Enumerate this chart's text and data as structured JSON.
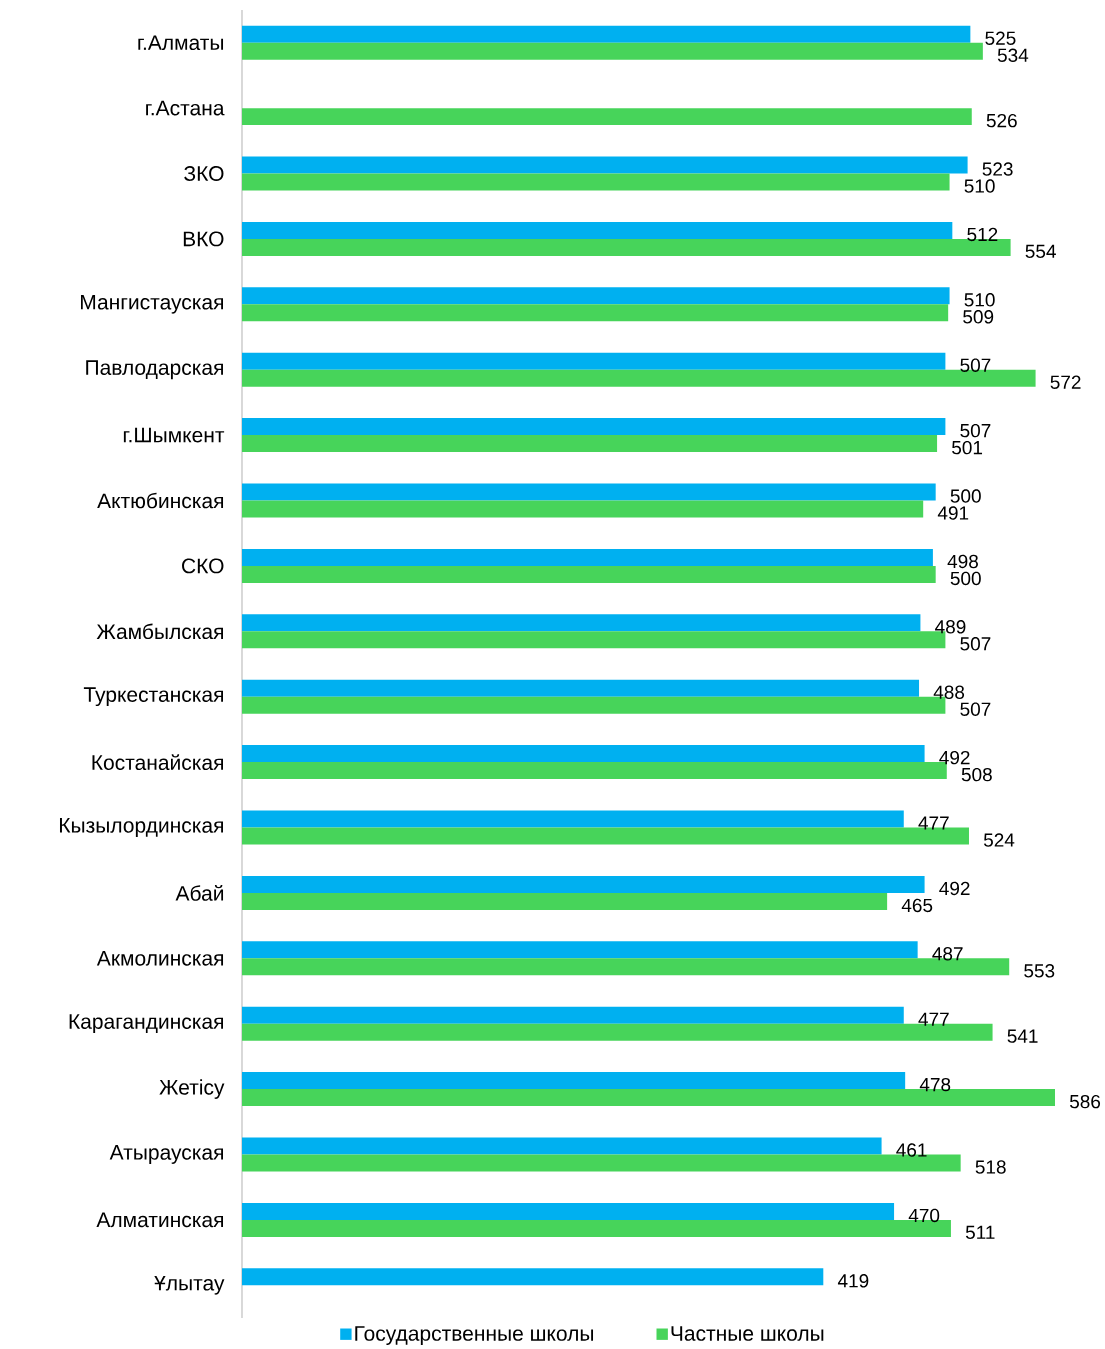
{
  "chart_data": {
    "type": "bar",
    "orientation": "horizontal",
    "categories": [
      "г.Алматы",
      "г.Астана",
      "ЗКО",
      "ВКО",
      "Мангистауская",
      "Павлодарская",
      "г.Шымкент",
      "Актюбинская",
      "СКО",
      "Жамбылская",
      "Туркестанская",
      "Костанайская",
      "Кызылординская",
      "Абай",
      "Акмолинская",
      "Карагандинская",
      "Жетісу",
      "Атырауская",
      "Алматинская",
      "Ұлытау"
    ],
    "series": [
      {
        "name": "Государственные школы",
        "color": "#00b0f0",
        "values": [
          525,
          null,
          523,
          512,
          510,
          507,
          507,
          500,
          498,
          489,
          488,
          492,
          477,
          492,
          487,
          477,
          478,
          461,
          470,
          419
        ]
      },
      {
        "name": "Частные школы",
        "color": "#47d45a",
        "values": [
          534,
          526,
          510,
          554,
          509,
          572,
          501,
          491,
          500,
          507,
          507,
          508,
          524,
          465,
          553,
          541,
          586,
          518,
          511,
          null
        ]
      }
    ],
    "data_labels": true,
    "legend": "bottom",
    "tick_labels": "y"
  }
}
